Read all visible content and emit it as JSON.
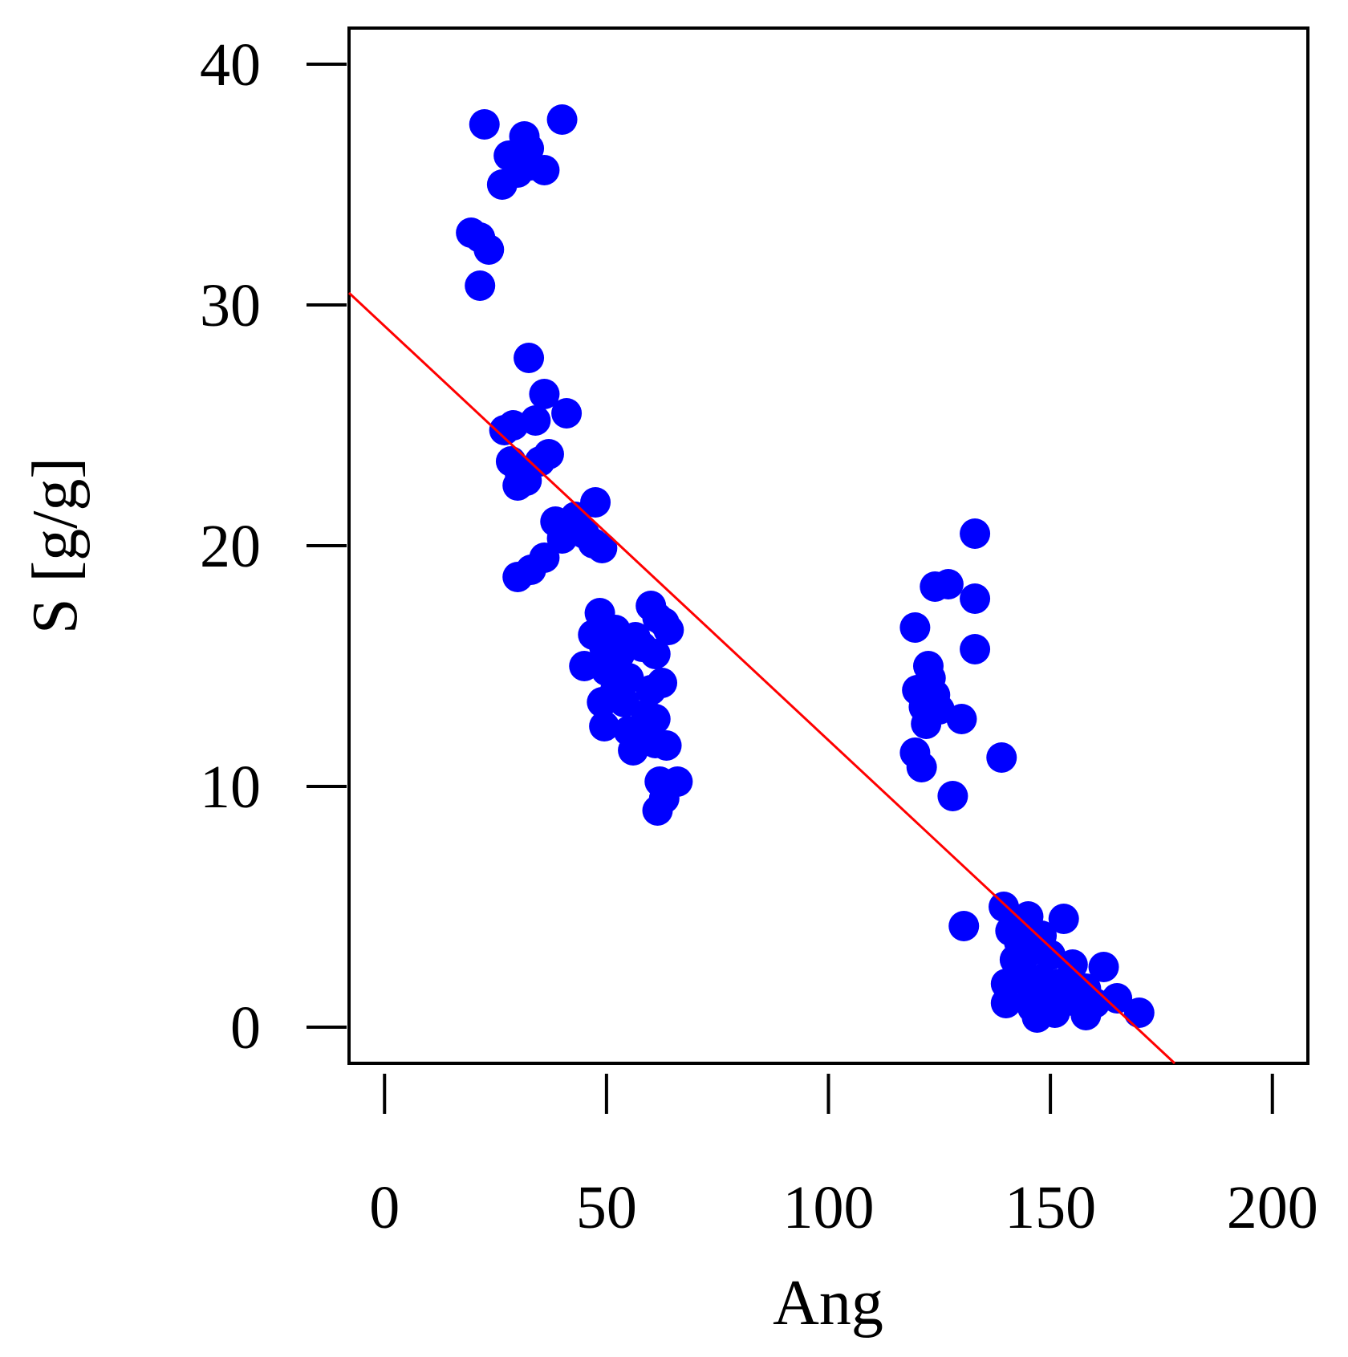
{
  "chart_data": {
    "type": "scatter",
    "xlabel": "Ang",
    "ylabel": "S [g/g]",
    "xlim": [
      -8,
      208
    ],
    "ylim": [
      -1.5,
      41.5
    ],
    "xticks": [
      0,
      50,
      100,
      150,
      200
    ],
    "yticks": [
      0,
      10,
      20,
      30,
      40
    ],
    "x_tick_labels": [
      "0",
      "50",
      "100",
      "150",
      "200"
    ],
    "y_tick_labels": [
      "0",
      "10",
      "20",
      "30",
      "40"
    ],
    "grid": false,
    "legend": "none",
    "point_color": "#0000ff",
    "line_color": "#ff0000",
    "series": [
      {
        "kind": "points",
        "points": [
          [
            22.5,
            37.5
          ],
          [
            40,
            37.7
          ],
          [
            31.5,
            37
          ],
          [
            29.5,
            36
          ],
          [
            28,
            36.2
          ],
          [
            32.5,
            36.5
          ],
          [
            30,
            35.5
          ],
          [
            26.5,
            35
          ],
          [
            36,
            35.6
          ],
          [
            33,
            35.8
          ],
          [
            19.5,
            33
          ],
          [
            23.5,
            32.3
          ],
          [
            21.5,
            32.8
          ],
          [
            21.5,
            30.8
          ],
          [
            32.5,
            27.8
          ],
          [
            36,
            26.3
          ],
          [
            41,
            25.5
          ],
          [
            34,
            25.2
          ],
          [
            29,
            25
          ],
          [
            27,
            24.8
          ],
          [
            28.5,
            23.5
          ],
          [
            30.5,
            23
          ],
          [
            35,
            23.5
          ],
          [
            37,
            23.8
          ],
          [
            30,
            22.5
          ],
          [
            32,
            22.7
          ],
          [
            47.5,
            21.8
          ],
          [
            43,
            21.2
          ],
          [
            38.5,
            21
          ],
          [
            45,
            20.5
          ],
          [
            40,
            20.3
          ],
          [
            47,
            20.1
          ],
          [
            49,
            19.9
          ],
          [
            36,
            19.5
          ],
          [
            33,
            19
          ],
          [
            30,
            18.7
          ],
          [
            48.5,
            17.2
          ],
          [
            60,
            17.5
          ],
          [
            61.5,
            17
          ],
          [
            63,
            16.8
          ],
          [
            52,
            16.5
          ],
          [
            56.5,
            16.2
          ],
          [
            64,
            16.5
          ],
          [
            47,
            16.3
          ],
          [
            49.5,
            15.8
          ],
          [
            53,
            15.5
          ],
          [
            58,
            15.8
          ],
          [
            61,
            15.5
          ],
          [
            45,
            15
          ],
          [
            50,
            14.8
          ],
          [
            55,
            14.5
          ],
          [
            52,
            14
          ],
          [
            60,
            14
          ],
          [
            62.5,
            14.3
          ],
          [
            49,
            13.5
          ],
          [
            54,
            13.5
          ],
          [
            59,
            13
          ],
          [
            61,
            12.8
          ],
          [
            49.5,
            12.5
          ],
          [
            55,
            12.3
          ],
          [
            58,
            12.1
          ],
          [
            61,
            11.8
          ],
          [
            63.5,
            11.7
          ],
          [
            56,
            11.5
          ],
          [
            62,
            10.2
          ],
          [
            66,
            10.2
          ],
          [
            63,
            9.5
          ],
          [
            61.5,
            9
          ],
          [
            133,
            20.5
          ],
          [
            124,
            18.3
          ],
          [
            127,
            18.4
          ],
          [
            133,
            17.8
          ],
          [
            119.5,
            16.6
          ],
          [
            133,
            15.7
          ],
          [
            122.5,
            15
          ],
          [
            123,
            14.5
          ],
          [
            120,
            14
          ],
          [
            124,
            13.8
          ],
          [
            121.5,
            13.3
          ],
          [
            125,
            13.2
          ],
          [
            122,
            12.6
          ],
          [
            130,
            12.8
          ],
          [
            119.5,
            11.4
          ],
          [
            139,
            11.2
          ],
          [
            121,
            10.8
          ],
          [
            128,
            9.6
          ],
          [
            139.5,
            5
          ],
          [
            145,
            4.6
          ],
          [
            153,
            4.5
          ],
          [
            130.5,
            4.2
          ],
          [
            141,
            4
          ],
          [
            148,
            3.8
          ],
          [
            143,
            3.5
          ],
          [
            146,
            3.2
          ],
          [
            150,
            3
          ],
          [
            142,
            2.8
          ],
          [
            155,
            2.6
          ],
          [
            162,
            2.5
          ],
          [
            144,
            2.2
          ],
          [
            148,
            2
          ],
          [
            152,
            1.8
          ],
          [
            158,
            1.6
          ],
          [
            146,
            1.5
          ],
          [
            140,
            1.8
          ],
          [
            149,
            1.2
          ],
          [
            155,
            1.1
          ],
          [
            160,
            1
          ],
          [
            165,
            1.2
          ],
          [
            140,
            1
          ],
          [
            146,
            0.8
          ],
          [
            151,
            0.6
          ],
          [
            158,
            0.5
          ],
          [
            170,
            0.6
          ],
          [
            147,
            0.4
          ]
        ]
      },
      {
        "kind": "line",
        "points": [
          [
            -8,
            30.5
          ],
          [
            178,
            -1.5
          ]
        ]
      }
    ]
  }
}
